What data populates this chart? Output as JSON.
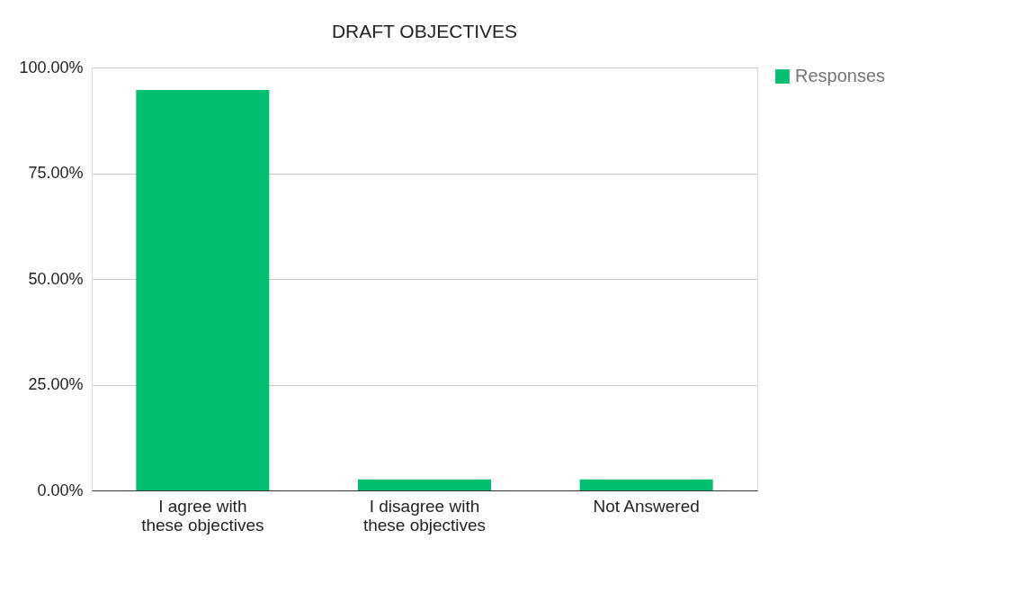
{
  "chart_data": {
    "type": "bar",
    "title": "DRAFT OBJECTIVES",
    "categories": [
      "I agree with these objectives",
      "I disagree with these objectives",
      "Not Answered"
    ],
    "series": [
      {
        "name": "Responses",
        "color": "#00bf6f",
        "values": [
          94.7,
          2.6,
          2.6
        ]
      }
    ],
    "ylim": [
      0,
      100
    ],
    "yticks": [
      {
        "value": 0,
        "label": "0.00%"
      },
      {
        "value": 25,
        "label": "25.00%"
      },
      {
        "value": 50,
        "label": "50.00%"
      },
      {
        "value": 75,
        "label": "75.00%"
      },
      {
        "value": 100,
        "label": "100.00%"
      }
    ],
    "grid": "y",
    "legend": "top right"
  }
}
